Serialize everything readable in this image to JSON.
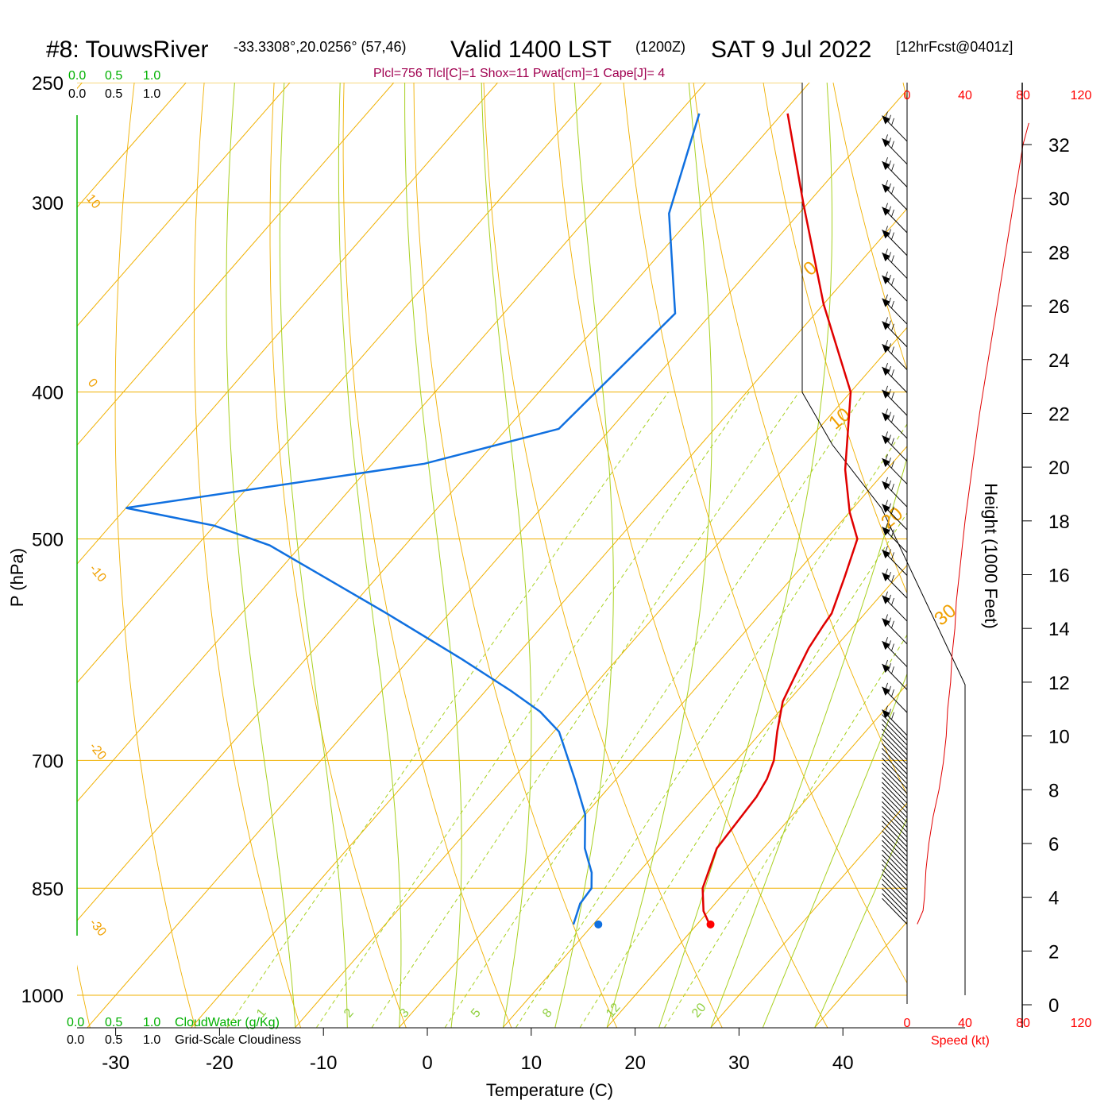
{
  "header": {
    "station": "#8: TouwsRiver",
    "coords": "-33.3308°,20.0256° (57,46)",
    "valid": "Valid 1400 LST",
    "utc": "(1200Z)",
    "date": "SAT 9 Jul 2022",
    "forecast": "[12hrFcst@0401z]",
    "indices": "Plcl=756 Tlcl[C]=1 Shox=11 Pwat[cm]=1 Cape[J]= 4"
  },
  "legend": {
    "cloudwater_scale": [
      "0.0",
      "0.5",
      "1.0"
    ],
    "cloudiness_scale": [
      "0.0",
      "0.5",
      "1.0"
    ],
    "cloudwater_label": "CloudWater (g/Kg)",
    "cloudiness_label": "Grid-Scale Cloudiness",
    "speed_label": "Speed (kt)"
  },
  "chart_data": {
    "type": "line",
    "subtype": "skew-T log-P sounding",
    "xlabel": "Temperature (C)",
    "ylabel": "P (hPa)",
    "y2label": "Height (1000 Feet)",
    "x_ticks": [
      -30,
      -20,
      -10,
      0,
      10,
      20,
      30,
      40
    ],
    "p_ticks": [
      250,
      300,
      400,
      500,
      700,
      850,
      1000
    ],
    "height_ticks_kft": [
      0,
      2,
      4,
      6,
      8,
      10,
      12,
      14,
      16,
      18,
      20,
      22,
      24,
      26,
      28,
      30,
      32
    ],
    "speed_ticks_kt": [
      0,
      40,
      80,
      120
    ],
    "isotherm_labels": [
      "0",
      "10",
      "20",
      "30"
    ],
    "theta_labels": [
      "10",
      "0",
      "-10",
      "-20",
      "-30"
    ],
    "mixing_ratio_labels": [
      "1",
      "2",
      "3",
      "5",
      "8",
      "12",
      "20"
    ],
    "series": [
      {
        "name": "temperature",
        "color": "#e00000",
        "points": [
          [
            21.3,
            899
          ],
          [
            19.5,
            880
          ],
          [
            17.5,
            850
          ],
          [
            15.5,
            800
          ],
          [
            15.0,
            740
          ],
          [
            14.5,
            720
          ],
          [
            13.6,
            700
          ],
          [
            11.5,
            670
          ],
          [
            9.5,
            640
          ],
          [
            8.3,
            610
          ],
          [
            7.5,
            590
          ],
          [
            7.0,
            570
          ],
          [
            6.8,
            560
          ],
          [
            5.0,
            530
          ],
          [
            3.0,
            500
          ],
          [
            0.0,
            480
          ],
          [
            -4.0,
            450
          ],
          [
            -10.0,
            400
          ],
          [
            -20.0,
            350
          ],
          [
            -30.5,
            300
          ],
          [
            -39.5,
            262
          ]
        ]
      },
      {
        "name": "dewpoint",
        "color": "#1070e0",
        "points": [
          [
            8.1,
            898
          ],
          [
            7.8,
            890
          ],
          [
            7.0,
            870
          ],
          [
            6.8,
            850
          ],
          [
            5.5,
            830
          ],
          [
            2.8,
            800
          ],
          [
            0.0,
            760
          ],
          [
            -4.0,
            720
          ],
          [
            -9.5,
            670
          ],
          [
            -13.0,
            650
          ],
          [
            -17.5,
            630
          ],
          [
            -25.0,
            600
          ],
          [
            -36.0,
            560
          ],
          [
            -53.0,
            505
          ],
          [
            -60.0,
            490
          ],
          [
            -70.0,
            477
          ],
          [
            -45.0,
            446
          ],
          [
            -35.0,
            423
          ],
          [
            -33.5,
            355
          ],
          [
            -42.5,
            305
          ],
          [
            -48.0,
            262
          ]
        ]
      },
      {
        "name": "surface_dewpoint",
        "color": "#1070e0",
        "points": [
          [
            10.5,
            898
          ]
        ]
      },
      {
        "name": "surface_temperature",
        "color": "#ff0000",
        "points": [
          [
            21.3,
            898
          ]
        ]
      }
    ],
    "wind_speed_kt_by_height_kft": [
      [
        3.0,
        7
      ],
      [
        3.5,
        11
      ],
      [
        4.0,
        12
      ],
      [
        5.0,
        13
      ],
      [
        6.0,
        15
      ],
      [
        7.0,
        18
      ],
      [
        8.0,
        22
      ],
      [
        9.0,
        25
      ],
      [
        10.0,
        27
      ],
      [
        11.0,
        28
      ],
      [
        12.0,
        30
      ],
      [
        13.0,
        31
      ],
      [
        14.0,
        33
      ],
      [
        15.0,
        34
      ],
      [
        16.0,
        36
      ],
      [
        17.0,
        38
      ],
      [
        18.0,
        40
      ],
      [
        20.0,
        45
      ],
      [
        22.0,
        50
      ],
      [
        24.0,
        56
      ],
      [
        26.0,
        62
      ],
      [
        28.0,
        68
      ],
      [
        30.0,
        74
      ],
      [
        32.0,
        80
      ],
      [
        32.8,
        84
      ]
    ],
    "wind_barbs_kt": [
      [
        22.2,
        15
      ],
      [
        18.0,
        40
      ],
      [
        24.5,
        65
      ],
      [
        32,
        85
      ]
    ]
  }
}
